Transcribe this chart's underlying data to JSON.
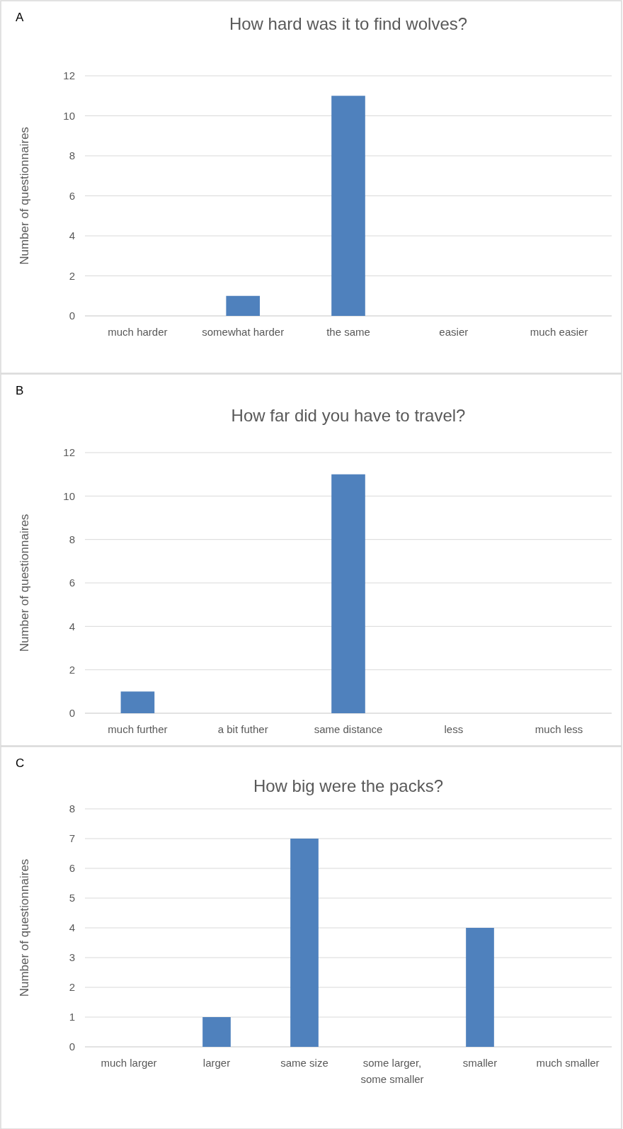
{
  "chart_data": [
    {
      "type": "bar",
      "title": "How hard was it to find wolves?",
      "annotations": [
        "A"
      ],
      "ylabel": "Number of questionnaires",
      "categories": [
        "much harder",
        "somewhat harder",
        "the same",
        "easier",
        "much easier"
      ],
      "values": [
        0,
        1,
        11,
        0,
        0
      ],
      "color": "#4f81bd",
      "ylim": [
        0,
        12
      ],
      "yticks": [
        0,
        2,
        4,
        6,
        8,
        10,
        12
      ],
      "grid": "y"
    },
    {
      "type": "bar",
      "title": "How far did you have to travel?",
      "annotations": [
        "B"
      ],
      "ylabel": "Number of questionnaires",
      "categories": [
        "much further",
        "a bit futher",
        "same distance",
        "less",
        "much less"
      ],
      "values": [
        1,
        0,
        11,
        0,
        0
      ],
      "color": "#4f81bd",
      "ylim": [
        0,
        12
      ],
      "yticks": [
        0,
        2,
        4,
        6,
        8,
        10,
        12
      ],
      "grid": "y"
    },
    {
      "type": "bar",
      "title": "How big were the packs?",
      "annotations": [
        "C"
      ],
      "ylabel": "Number of questionnaires",
      "categories": [
        "much larger",
        "larger",
        "same size",
        "some larger, some smaller",
        "smaller",
        "much smaller"
      ],
      "values": [
        0,
        1,
        7,
        0,
        4,
        0
      ],
      "color": "#4f81bd",
      "ylim": [
        0,
        8
      ],
      "yticks": [
        0,
        1,
        2,
        3,
        4,
        5,
        6,
        7,
        8
      ],
      "grid": "y"
    }
  ]
}
